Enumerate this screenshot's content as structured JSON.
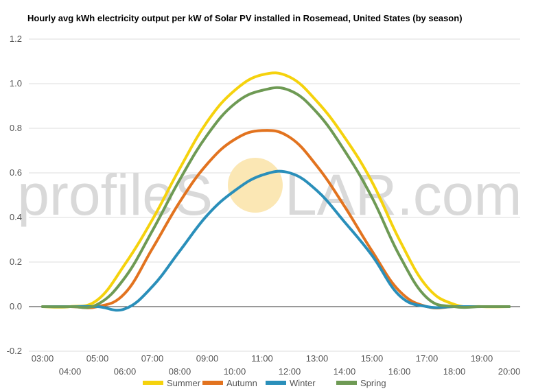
{
  "chart_data": {
    "type": "line",
    "title": "Hourly avg kWh electricity output per kW of Solar PV installed in Rosemead, United States (by season)",
    "xlabel": "",
    "ylabel": "",
    "ylim": [
      -0.2,
      1.2
    ],
    "yticks": [
      "-0.2",
      "0.0",
      "0.2",
      "0.4",
      "0.6",
      "0.8",
      "1.0",
      "1.2"
    ],
    "categories": [
      "03:00",
      "04:00",
      "05:00",
      "06:00",
      "07:00",
      "08:00",
      "09:00",
      "10:00",
      "11:00",
      "12:00",
      "13:00",
      "14:00",
      "15:00",
      "16:00",
      "17:00",
      "18:00",
      "19:00",
      "20:00"
    ],
    "grid": true,
    "legend_position": "bottom",
    "series": [
      {
        "name": "Summer",
        "color": "#f5d20d",
        "values": [
          0.0,
          0.0,
          0.03,
          0.19,
          0.39,
          0.62,
          0.83,
          0.97,
          1.04,
          1.03,
          0.92,
          0.76,
          0.56,
          0.3,
          0.09,
          0.01,
          0.0,
          0.0
        ]
      },
      {
        "name": "Autumn",
        "color": "#e2731f",
        "values": [
          0.0,
          0.0,
          0.0,
          0.06,
          0.26,
          0.47,
          0.64,
          0.75,
          0.79,
          0.76,
          0.63,
          0.45,
          0.25,
          0.07,
          0.0,
          0.0,
          0.0,
          0.0
        ]
      },
      {
        "name": "Winter",
        "color": "#2a8fba",
        "values": [
          0.0,
          0.0,
          0.0,
          -0.01,
          0.09,
          0.25,
          0.41,
          0.52,
          0.59,
          0.6,
          0.52,
          0.38,
          0.23,
          0.05,
          0.0,
          0.0,
          0.0,
          0.0
        ]
      },
      {
        "name": "Spring",
        "color": "#6e9a54",
        "values": [
          0.0,
          0.0,
          0.01,
          0.13,
          0.34,
          0.57,
          0.77,
          0.91,
          0.97,
          0.97,
          0.87,
          0.7,
          0.49,
          0.23,
          0.04,
          0.0,
          0.0,
          0.0
        ]
      }
    ]
  },
  "watermark": {
    "text_left": "profileS",
    "text_right": "LAR.com",
    "sun_color": "#fbe7b4"
  }
}
